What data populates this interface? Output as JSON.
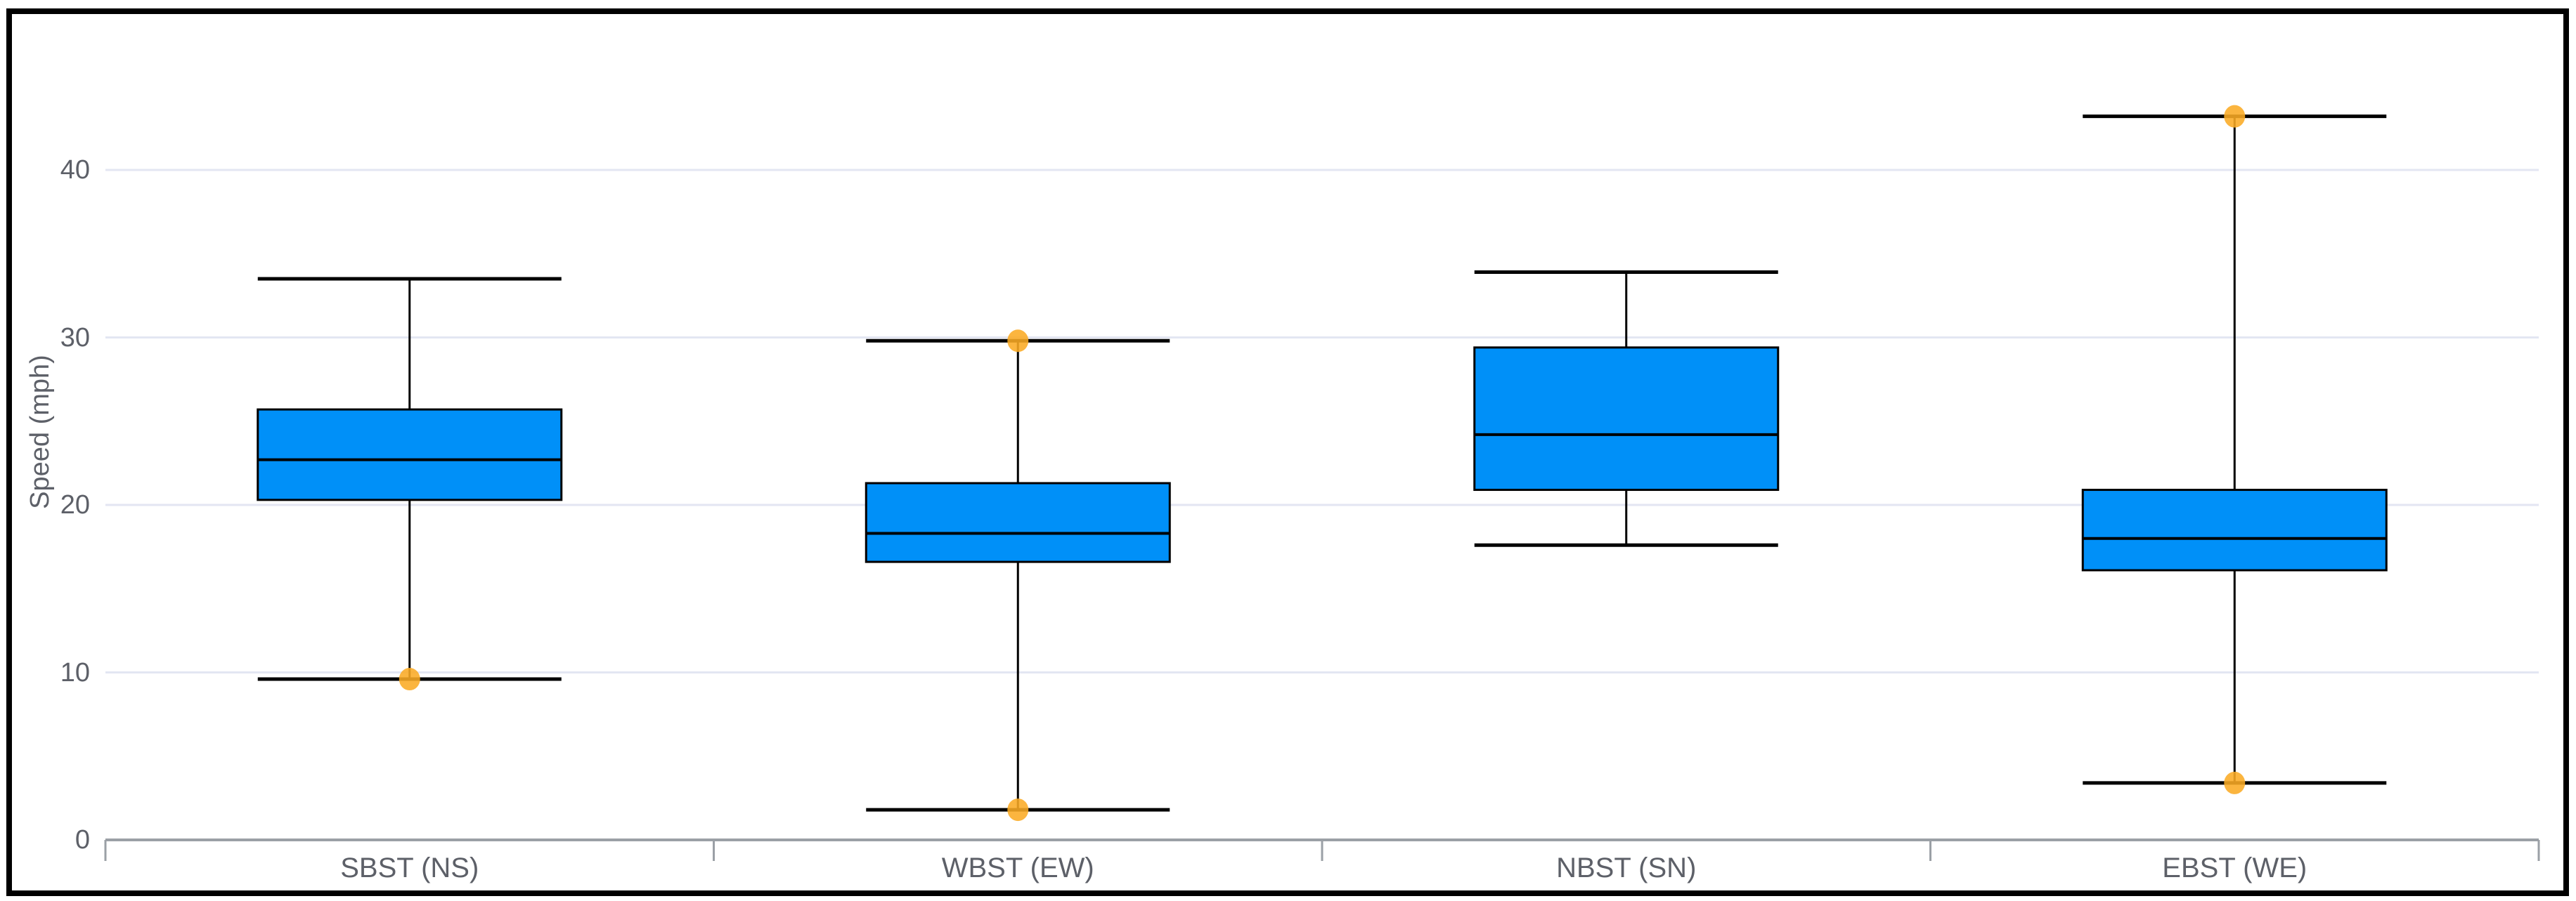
{
  "chart_data": {
    "type": "box",
    "title": "",
    "xlabel": "",
    "ylabel": "Speed (mph)",
    "ylim": [
      0,
      45
    ],
    "yticks": [
      "0",
      "10",
      "20",
      "30",
      "40"
    ],
    "ytick_values": [
      0,
      10,
      20,
      30,
      40
    ],
    "grid": true,
    "legend": false,
    "categories": [
      "SBST (NS)",
      "WBST (EW)",
      "NBST (SN)",
      "EBST (WE)"
    ],
    "series": [
      {
        "category": "SBST (NS)",
        "min": 9.6,
        "q1": 20.3,
        "median": 22.7,
        "q3": 25.7,
        "max": 33.5,
        "outliers": [
          9.6
        ]
      },
      {
        "category": "WBST (EW)",
        "min": 1.8,
        "q1": 16.6,
        "median": 18.3,
        "q3": 21.3,
        "max": 29.8,
        "outliers": [
          29.8,
          1.8
        ]
      },
      {
        "category": "NBST (SN)",
        "min": 17.6,
        "q1": 20.9,
        "median": 24.2,
        "q3": 29.4,
        "max": 33.9,
        "outliers": []
      },
      {
        "category": "EBST (WE)",
        "min": 3.4,
        "q1": 16.1,
        "median": 18.0,
        "q3": 20.9,
        "max": 43.2,
        "outliers": [
          43.2,
          3.4
        ]
      }
    ],
    "colors": {
      "box_fill": "#0090F8",
      "box_stroke": "#000000",
      "whisker": "#000000",
      "outlier_dot": "#FBAB24",
      "gridline": "#E3E6F2",
      "axis_line": "#9BA0A6",
      "text": "#5D6068",
      "frame": "#000000",
      "background": "#FFFFFF"
    }
  }
}
